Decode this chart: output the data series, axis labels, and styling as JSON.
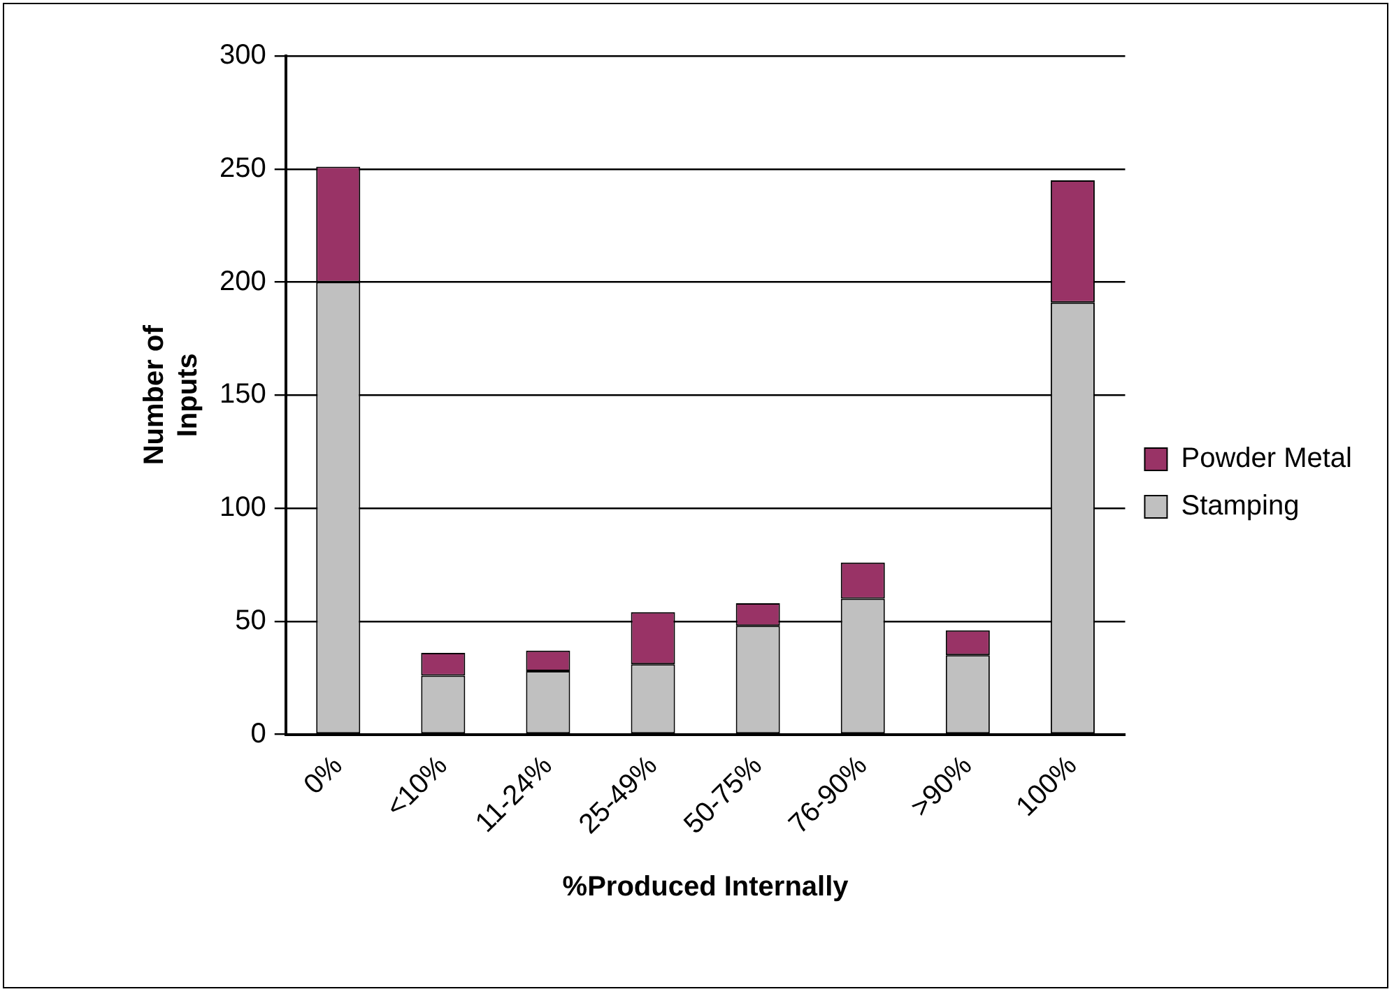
{
  "chart_data": {
    "type": "bar",
    "stacked": true,
    "xlabel": "%Produced Internally",
    "ylabel": "Number of\nInputs",
    "categories": [
      "0%",
      "<10%",
      "11-24%",
      "25-49%",
      "50-75%",
      "76-90%",
      ">90%",
      "100%"
    ],
    "series": [
      {
        "name": "Stamping",
        "color": "#c0c0c0",
        "values": [
          200,
          26,
          28,
          31,
          48,
          60,
          35,
          191
        ]
      },
      {
        "name": "Powder Metal",
        "color": "#993366",
        "values": [
          51,
          10,
          9,
          23,
          10,
          16,
          11,
          54
        ]
      }
    ],
    "ylim": [
      0,
      300
    ],
    "yticks": [
      0,
      50,
      100,
      150,
      200,
      250,
      300
    ],
    "grid": "y",
    "legend": "right"
  }
}
